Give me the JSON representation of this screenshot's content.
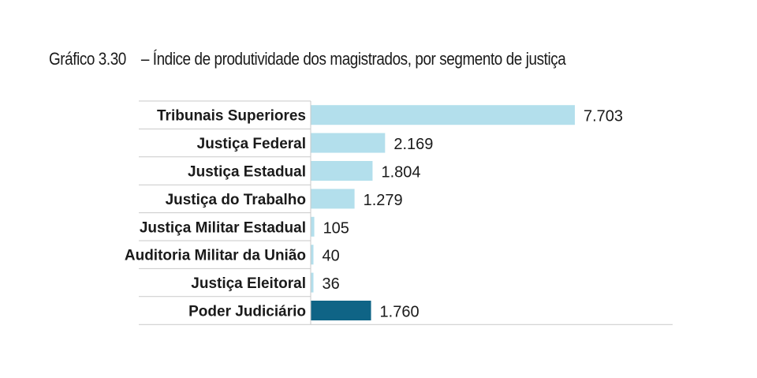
{
  "title": {
    "prefix": "Gráfico 3.30",
    "text": "– Índice de produtividade dos magistrados, por segmento de justiça"
  },
  "chart_data": {
    "type": "bar",
    "orientation": "horizontal",
    "categories": [
      "Tribunais Superiores",
      "Justiça Federal",
      "Justiça Estadual",
      "Justiça do Trabalho",
      "Justiça Militar Estadual",
      "Auditoria Militar da União",
      "Justiça Eleitoral",
      "Poder Judiciário"
    ],
    "values": [
      7703,
      2169,
      1804,
      1279,
      105,
      40,
      36,
      1760
    ],
    "value_labels": [
      "7.703",
      "2.169",
      "1.804",
      "1.279",
      "105",
      "40",
      "36",
      "1.760"
    ],
    "xlim": [
      0,
      10000
    ],
    "grid": false,
    "legend": "none",
    "colors": {
      "bar": "#b3dfec",
      "highlight_bar": "#0f6486",
      "highlight_category": "Poder Judiciário",
      "rule": "#c9c9c9"
    }
  }
}
